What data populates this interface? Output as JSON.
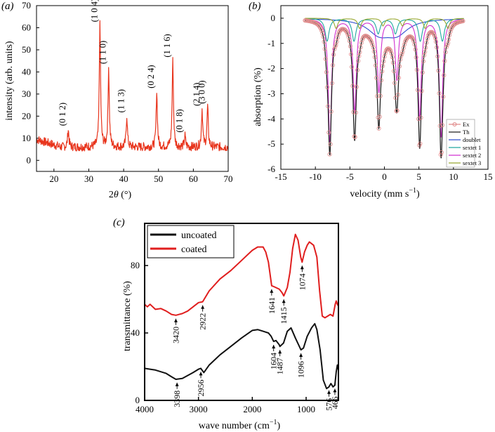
{
  "chart_data": [
    {
      "type": "line",
      "panel_label": "(a)",
      "xlabel_pre": "2",
      "xlabel_theta": "θ",
      "xlabel_post": " (°)",
      "ylabel": "intensity (arb. units)",
      "xlim": [
        15,
        70
      ],
      "ylim": [
        -5,
        70
      ],
      "x_ticks": [
        20,
        30,
        40,
        50,
        60,
        70
      ],
      "y_ticks": [
        0,
        10,
        20,
        30,
        40,
        50,
        60,
        70
      ],
      "line_color": "#e8341c",
      "baseline": 6,
      "peaks": [
        {
          "x": 24.1,
          "y": 14,
          "label": "(0 1 2)"
        },
        {
          "x": 33.2,
          "y": 61,
          "label": "(1 0 4)"
        },
        {
          "x": 35.7,
          "y": 42,
          "label": "(1 1 0)"
        },
        {
          "x": 40.9,
          "y": 20,
          "label": "(1 1 3)"
        },
        {
          "x": 49.5,
          "y": 31,
          "label": "(0 2 4)"
        },
        {
          "x": 54.1,
          "y": 45,
          "label": "(1 1 6)"
        },
        {
          "x": 57.6,
          "y": 11,
          "label": "(0 1 8)"
        },
        {
          "x": 62.5,
          "y": 23,
          "label": "(2 1 4)"
        },
        {
          "x": 64.1,
          "y": 24,
          "label": "(3 0 0)"
        }
      ]
    },
    {
      "type": "line",
      "panel_label": "(b)",
      "xlabel": "velocity (mm s",
      "xlabel_sup": "−1",
      "xlabel_end": ")",
      "ylabel": "absorption (%)",
      "xlim": [
        -15,
        15
      ],
      "ylim": [
        -6,
        0.5
      ],
      "x_ticks": [
        -15,
        -10,
        -5,
        0,
        5,
        10,
        15
      ],
      "y_ticks": [
        0,
        -1,
        -2,
        -3,
        -4,
        -5,
        -6
      ],
      "legend_position": "bottom-right",
      "series": [
        {
          "name": "Ex",
          "color": "#e08a8a"
        },
        {
          "name": "Th",
          "color": "#222222"
        },
        {
          "name": "doublet",
          "color": "#3050d0"
        },
        {
          "name": "sextet 1",
          "color": "#20a8a0"
        },
        {
          "name": "sextet 2",
          "color": "#d030d0"
        },
        {
          "name": "sextet 3",
          "color": "#98a830"
        }
      ],
      "components": [
        {
          "series": "doublet",
          "lines": [
            [
              -0.8,
              0.55,
              2.0
            ],
            [
              1.8,
              0.55,
              2.0
            ]
          ]
        },
        {
          "series": "sextet 1",
          "lines": [
            [
              -8.3,
              0.9,
              0.35
            ],
            [
              -4.4,
              0.9,
              0.35
            ],
            [
              -0.9,
              0.6,
              0.35
            ],
            [
              1.6,
              0.6,
              0.35
            ],
            [
              5.2,
              0.9,
              0.35
            ],
            [
              8.4,
              0.9,
              0.35
            ]
          ]
        },
        {
          "series": "sextet 2",
          "lines": [
            [
              -7.9,
              4.9,
              0.28
            ],
            [
              -4.3,
              3.7,
              0.28
            ],
            [
              -0.8,
              2.9,
              0.28
            ],
            [
              1.8,
              2.4,
              0.28
            ],
            [
              5.1,
              4.0,
              0.28
            ],
            [
              8.2,
              4.7,
              0.28
            ]
          ]
        },
        {
          "series": "sextet 3",
          "lines": [
            [
              -7.0,
              0.4,
              0.3
            ],
            [
              -3.6,
              0.4,
              0.3
            ],
            [
              -0.2,
              0.3,
              0.3
            ],
            [
              2.6,
              0.3,
              0.3
            ],
            [
              5.9,
              0.4,
              0.3
            ],
            [
              9.2,
              0.4,
              0.3
            ]
          ]
        }
      ]
    },
    {
      "type": "line",
      "panel_label": "(c)",
      "xlabel": "wave number (cm",
      "xlabel_sup": "−1",
      "xlabel_end": ")",
      "ylabel": "transmittance (%)",
      "xlim": [
        4000,
        400
      ],
      "ylim": [
        0,
        105
      ],
      "x_ticks": [
        4000,
        3000,
        2000,
        1000
      ],
      "y_ticks": [
        0,
        40,
        80
      ],
      "legend_position": "top-left",
      "series": [
        {
          "name": "uncoated",
          "color": "#111111",
          "x": [
            4000,
            3900,
            3800,
            3700,
            3600,
            3500,
            3420,
            3300,
            3100,
            3000,
            2956,
            2900,
            2800,
            2600,
            2400,
            2200,
            2000,
            1900,
            1800,
            1700,
            1650,
            1604,
            1560,
            1500,
            1487,
            1420,
            1350,
            1280,
            1200,
            1096,
            1050,
            980,
            900,
            840,
            800,
            740,
            680,
            620,
            576,
            540,
            500,
            466,
            440,
            420,
            400
          ],
          "values": [
            19,
            18.5,
            18,
            17,
            16,
            14,
            12.5,
            13,
            16.5,
            18.5,
            19,
            16.5,
            21,
            27,
            32,
            37,
            41.5,
            42,
            41,
            40,
            38,
            35,
            35.5,
            33,
            32,
            34,
            41,
            43,
            37,
            30,
            31,
            38,
            43,
            45.5,
            42,
            30,
            12,
            7,
            8,
            10,
            8,
            9,
            17,
            21,
            18
          ]
        },
        {
          "name": "coated",
          "color": "#e01e1e",
          "x": [
            4000,
            3950,
            3900,
            3800,
            3700,
            3600,
            3500,
            3420,
            3300,
            3200,
            3100,
            3000,
            2922,
            2800,
            2600,
            2400,
            2200,
            2000,
            1900,
            1800,
            1750,
            1700,
            1641,
            1600,
            1500,
            1450,
            1415,
            1350,
            1300,
            1250,
            1200,
            1150,
            1100,
            1074,
            1030,
            980,
            940,
            900,
            860,
            800,
            750,
            700,
            650,
            600,
            550,
            500,
            460,
            440,
            420,
            400
          ],
          "values": [
            57,
            55.5,
            57,
            54,
            54.5,
            53,
            51,
            50.5,
            51.5,
            53,
            55.5,
            58,
            58.5,
            65,
            72,
            77,
            83,
            89,
            91,
            91,
            88,
            82,
            68,
            67.5,
            66,
            64,
            62,
            67,
            76,
            90,
            98.5,
            95,
            85,
            82,
            88,
            92,
            94,
            93,
            92,
            85,
            65,
            50,
            49,
            50,
            51,
            50,
            57,
            59,
            57,
            56
          ]
        }
      ],
      "annotations": [
        {
          "series": "coated",
          "x": 3420,
          "label": "3420"
        },
        {
          "series": "coated",
          "x": 2922,
          "label": "2922"
        },
        {
          "series": "coated",
          "x": 1641,
          "label": "1641"
        },
        {
          "series": "coated",
          "x": 1415,
          "label": "1415"
        },
        {
          "series": "coated",
          "x": 1074,
          "label": "1074"
        },
        {
          "series": "uncoated",
          "x": 3398,
          "label": "3398"
        },
        {
          "series": "uncoated",
          "x": 2956,
          "label": "2956"
        },
        {
          "series": "uncoated",
          "x": 1604,
          "label": "1604"
        },
        {
          "series": "uncoated",
          "x": 1487,
          "label": "1487"
        },
        {
          "series": "uncoated",
          "x": 1096,
          "label": "1096"
        },
        {
          "series": "uncoated",
          "x": 576,
          "label": "576"
        },
        {
          "series": "uncoated",
          "x": 466,
          "label": "466"
        }
      ]
    }
  ]
}
